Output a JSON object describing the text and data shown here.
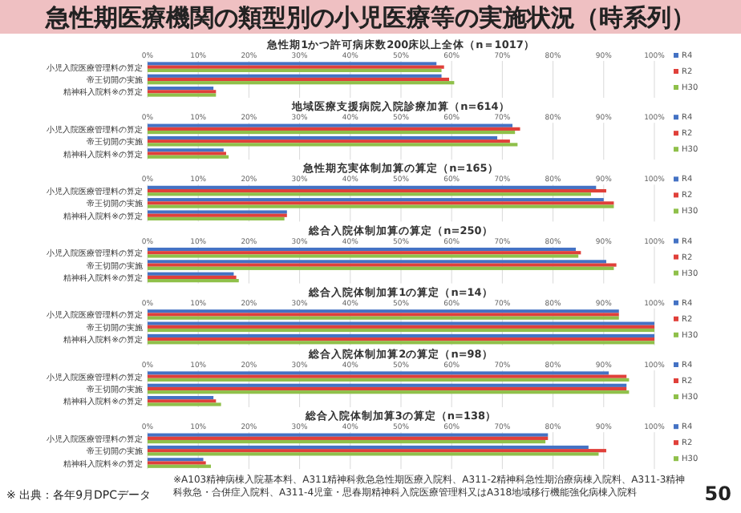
{
  "chart_data": [
    {
      "type": "bar",
      "orientation": "horizontal",
      "title": "急性期1かつ許可病床数200床以上全体（n＝1017）",
      "categories": [
        "小児入院医療管理料の算定",
        "帝王切開の実施",
        "精神科入院料※の算定"
      ],
      "series": [
        {
          "name": "R4",
          "color": "#4472c4",
          "values": [
            57,
            58,
            13
          ]
        },
        {
          "name": "R2",
          "color": "#e0403a",
          "values": [
            58.5,
            59.5,
            13.5
          ]
        },
        {
          "name": "H30",
          "color": "#8fc04a",
          "values": [
            58,
            60.5,
            13.5
          ]
        }
      ],
      "xlim": [
        0,
        100
      ],
      "xticks": [
        {
          "value": 0,
          "label": "0%"
        },
        {
          "value": 10,
          "label": "10%"
        },
        {
          "value": 20,
          "label": "20%"
        },
        {
          "value": 30,
          "label": "30%"
        },
        {
          "value": 40,
          "label": "40%"
        },
        {
          "value": 50,
          "label": "50%"
        },
        {
          "value": 60,
          "label": "60%"
        },
        {
          "value": 70,
          "label": "70%"
        },
        {
          "value": 80,
          "label": "80%"
        },
        {
          "value": 90,
          "label": "90%"
        },
        {
          "value": 100,
          "label": "100%"
        }
      ],
      "grid": "x",
      "legend": "right",
      "annotations": [
        "急性期医療機関の類型別の小児医療等の実施状況（時系列）"
      ]
    },
    {
      "type": "bar",
      "orientation": "horizontal",
      "title": "地域医療支援病院入院診療加算（n=614）",
      "categories": [
        "小児入院医療管理料の算定",
        "帝王切開の実施",
        "精神科入院料※の算定"
      ],
      "series": [
        {
          "name": "R4",
          "color": "#4472c4",
          "values": [
            72,
            69,
            15
          ]
        },
        {
          "name": "R2",
          "color": "#e0403a",
          "values": [
            73.5,
            71.5,
            15.5
          ]
        },
        {
          "name": "H30",
          "color": "#8fc04a",
          "values": [
            72.5,
            73,
            16
          ]
        }
      ],
      "xlim": [
        0,
        100
      ],
      "xticks": [
        {
          "value": 0,
          "label": "0%"
        },
        {
          "value": 10,
          "label": "10%"
        },
        {
          "value": 20,
          "label": "20%"
        },
        {
          "value": 30,
          "label": "30%"
        },
        {
          "value": 40,
          "label": "40%"
        },
        {
          "value": 50,
          "label": "50%"
        },
        {
          "value": 60,
          "label": "60%"
        },
        {
          "value": 70,
          "label": "70%"
        },
        {
          "value": 80,
          "label": "80%"
        },
        {
          "value": 90,
          "label": "90%"
        },
        {
          "value": 100,
          "label": "100%"
        }
      ],
      "grid": "x",
      "legend": "right"
    },
    {
      "type": "bar",
      "orientation": "horizontal",
      "title": "急性期充実体制加算の算定（n=165）",
      "categories": [
        "小児入院医療管理料の算定",
        "帝王切開の実施",
        "精神科入院料※の算定"
      ],
      "series": [
        {
          "name": "R4",
          "color": "#4472c4",
          "values": [
            88.5,
            90,
            27.5
          ]
        },
        {
          "name": "R2",
          "color": "#e0403a",
          "values": [
            90.5,
            92,
            27.5
          ]
        },
        {
          "name": "H30",
          "color": "#8fc04a",
          "values": [
            87.5,
            92,
            27
          ]
        }
      ],
      "xlim": [
        0,
        100
      ],
      "xticks": [
        {
          "value": 0,
          "label": "0%"
        },
        {
          "value": 10,
          "label": "10%"
        },
        {
          "value": 20,
          "label": "20%"
        },
        {
          "value": 30,
          "label": "30%"
        },
        {
          "value": 40,
          "label": "40%"
        },
        {
          "value": 50,
          "label": "50%"
        },
        {
          "value": 60,
          "label": "60%"
        },
        {
          "value": 70,
          "label": "70%"
        },
        {
          "value": 80,
          "label": "80%"
        },
        {
          "value": 90,
          "label": "90%"
        },
        {
          "value": 100,
          "label": "100%"
        }
      ],
      "grid": "x",
      "legend": "right"
    },
    {
      "type": "bar",
      "orientation": "horizontal",
      "title": "総合入院体制加算の算定（n=250）",
      "categories": [
        "小児入院医療管理料の算定",
        "帝王切開の実施",
        "精神科入院料※の算定"
      ],
      "series": [
        {
          "name": "R4",
          "color": "#4472c4",
          "values": [
            84.5,
            90.5,
            17
          ]
        },
        {
          "name": "R2",
          "color": "#e0403a",
          "values": [
            85.5,
            92.5,
            17.5
          ]
        },
        {
          "name": "H30",
          "color": "#8fc04a",
          "values": [
            85,
            92,
            18
          ]
        }
      ],
      "xlim": [
        0,
        100
      ],
      "xticks": [
        {
          "value": 0,
          "label": "0%"
        },
        {
          "value": 10,
          "label": "10%"
        },
        {
          "value": 20,
          "label": "20%"
        },
        {
          "value": 30,
          "label": "30%"
        },
        {
          "value": 40,
          "label": "40%"
        },
        {
          "value": 50,
          "label": "50%"
        },
        {
          "value": 60,
          "label": "60%"
        },
        {
          "value": 70,
          "label": "70%"
        },
        {
          "value": 80,
          "label": "80%"
        },
        {
          "value": 90,
          "label": "90%"
        },
        {
          "value": 100,
          "label": "100%"
        }
      ],
      "grid": "x",
      "legend": "right"
    },
    {
      "type": "bar",
      "orientation": "horizontal",
      "title": "総合入院体制加算1の算定（n=14）",
      "categories": [
        "小児入院医療管理料の算定",
        "帝王切開の実施",
        "精神科入院料※の算定"
      ],
      "series": [
        {
          "name": "R4",
          "color": "#4472c4",
          "values": [
            93,
            100,
            100
          ]
        },
        {
          "name": "R2",
          "color": "#e0403a",
          "values": [
            93,
            100,
            100
          ]
        },
        {
          "name": "H30",
          "color": "#8fc04a",
          "values": [
            93,
            100,
            100
          ]
        }
      ],
      "xlim": [
        0,
        100
      ],
      "xticks": [
        {
          "value": 0,
          "label": "0%"
        },
        {
          "value": 10,
          "label": "10%"
        },
        {
          "value": 20,
          "label": "20%"
        },
        {
          "value": 30,
          "label": "30%"
        },
        {
          "value": 40,
          "label": "40%"
        },
        {
          "value": 50,
          "label": "50%"
        },
        {
          "value": 60,
          "label": "60%"
        },
        {
          "value": 70,
          "label": "70%"
        },
        {
          "value": 80,
          "label": "80%"
        },
        {
          "value": 90,
          "label": "90%"
        },
        {
          "value": 100,
          "label": "100%"
        }
      ],
      "grid": "x",
      "legend": "right"
    },
    {
      "type": "bar",
      "orientation": "horizontal",
      "title": "総合入院体制加算2の算定（n=98）",
      "categories": [
        "小児入院医療管理料の算定",
        "帝王切開の実施",
        "精神科入院料※の算定"
      ],
      "series": [
        {
          "name": "R4",
          "color": "#4472c4",
          "values": [
            91,
            94.5,
            13
          ]
        },
        {
          "name": "R2",
          "color": "#e0403a",
          "values": [
            94.5,
            94.5,
            13.5
          ]
        },
        {
          "name": "H30",
          "color": "#8fc04a",
          "values": [
            95,
            95,
            14.5
          ]
        }
      ],
      "xlim": [
        0,
        100
      ],
      "xticks": [
        {
          "value": 0,
          "label": "0%"
        },
        {
          "value": 10,
          "label": "10%"
        },
        {
          "value": 20,
          "label": "20%"
        },
        {
          "value": 30,
          "label": "30%"
        },
        {
          "value": 40,
          "label": "40%"
        },
        {
          "value": 50,
          "label": "50%"
        },
        {
          "value": 60,
          "label": "60%"
        },
        {
          "value": 70,
          "label": "70%"
        },
        {
          "value": 80,
          "label": "80%"
        },
        {
          "value": 90,
          "label": "90%"
        },
        {
          "value": 100,
          "label": "100%"
        }
      ],
      "grid": "x",
      "legend": "right"
    },
    {
      "type": "bar",
      "orientation": "horizontal",
      "title": "総合入院体制加算3の算定（n=138）",
      "categories": [
        "小児入院医療管理料の算定",
        "帝王切開の実施",
        "精神科入院料※の算定"
      ],
      "series": [
        {
          "name": "R4",
          "color": "#4472c4",
          "values": [
            79,
            87,
            11
          ]
        },
        {
          "name": "R2",
          "color": "#e0403a",
          "values": [
            79,
            90.5,
            11.5
          ]
        },
        {
          "name": "H30",
          "color": "#8fc04a",
          "values": [
            78.5,
            89,
            12.5
          ]
        }
      ],
      "xlim": [
        0,
        100
      ],
      "xticks": [
        {
          "value": 0,
          "label": "0%"
        },
        {
          "value": 10,
          "label": "10%"
        },
        {
          "value": 20,
          "label": "20%"
        },
        {
          "value": 30,
          "label": "30%"
        },
        {
          "value": 40,
          "label": "40%"
        },
        {
          "value": 50,
          "label": "50%"
        },
        {
          "value": 60,
          "label": "60%"
        },
        {
          "value": 70,
          "label": "70%"
        },
        {
          "value": 80,
          "label": "80%"
        },
        {
          "value": 90,
          "label": "90%"
        },
        {
          "value": 100,
          "label": "100%"
        }
      ],
      "grid": "x",
      "legend": "right",
      "annotations": [
        "※ 出典：各年9月DPCデータ",
        "※A103精神病棟入院基本料、A311精神科救急急性期医療入院料、A311-2精神科急性期治療病棟入院料、A311-3精神科救急・合併症入院料、A311-4児童・思春期精神科入院医療管理料又はA318地域移行機能強化病棟入院料",
        "50"
      ]
    }
  ]
}
